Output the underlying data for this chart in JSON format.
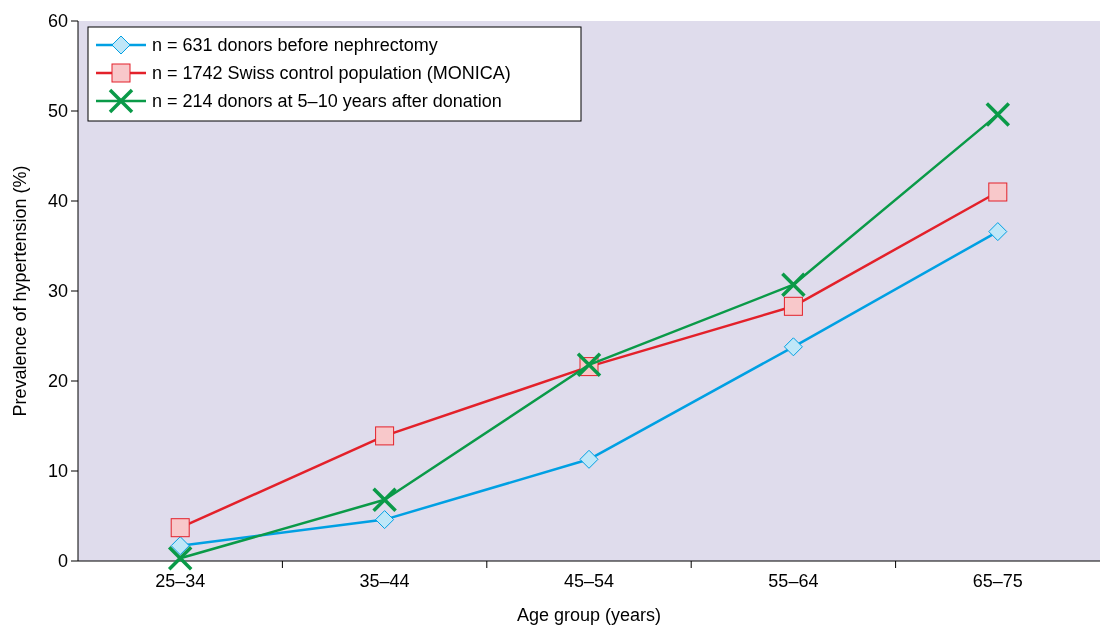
{
  "chart_data": {
    "type": "line",
    "xlabel": "Age group (years)",
    "ylabel": "Prevalence of hypertension (%)",
    "categories": [
      "25–34",
      "35–44",
      "45–54",
      "55–64",
      "65–75"
    ],
    "series": [
      {
        "name": "n = 631 donors before nephrectomy",
        "color": "#00a0e3",
        "marker": "diamond",
        "values": [
          1.7,
          4.6,
          11.3,
          23.8,
          36.6
        ]
      },
      {
        "name": "n = 1742 Swiss control population (MONICA)",
        "color": "#e3212a",
        "marker": "square",
        "values": [
          3.7,
          13.9,
          21.6,
          28.3,
          41.0
        ]
      },
      {
        "name": "n = 214 donors at 5–10 years after donation",
        "color": "#0a9a48",
        "marker": "cross",
        "values": [
          0.3,
          6.8,
          21.8,
          30.7,
          49.6
        ]
      }
    ],
    "ylim": [
      0,
      60
    ],
    "yticks": [
      0,
      10,
      20,
      30,
      40,
      50,
      60
    ],
    "grid": false,
    "legend": "top left",
    "line_style": "solid"
  }
}
